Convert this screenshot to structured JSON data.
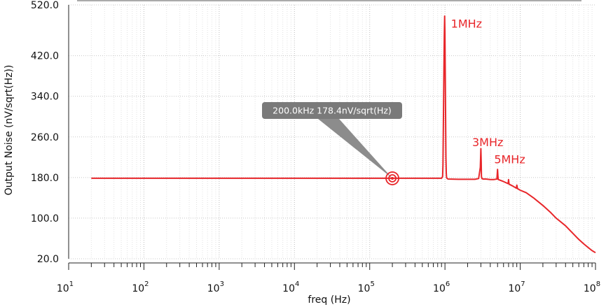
{
  "chart_data": {
    "type": "line",
    "x_scale": "log",
    "xlabel": "freq (Hz)",
    "ylabel": "Output Noise (nV/sqrt(Hz))",
    "xlim": [
      10,
      100000000
    ],
    "ylim": [
      20,
      520
    ],
    "x_ticks": [
      10,
      100,
      1000,
      10000,
      100000,
      1000000,
      10000000,
      100000000
    ],
    "x_tick_labels": [
      {
        "base": "10",
        "exp": "1"
      },
      {
        "base": "10",
        "exp": "2"
      },
      {
        "base": "10",
        "exp": "3"
      },
      {
        "base": "10",
        "exp": "4"
      },
      {
        "base": "10",
        "exp": "5"
      },
      {
        "base": "10",
        "exp": "6"
      },
      {
        "base": "10",
        "exp": "7"
      },
      {
        "base": "10",
        "exp": "8"
      }
    ],
    "y_ticks": [
      20,
      100,
      180,
      260,
      340,
      420,
      520
    ],
    "y_tick_labels": [
      "20.0",
      "100.0",
      "180.0",
      "260.0",
      "340.0",
      "420.0",
      "520.0"
    ],
    "grid": true,
    "line_color": "#e8262a",
    "series": [
      {
        "x": [
          20,
          900000,
          930000,
          940000,
          950000,
          960000,
          970000,
          980000,
          990000,
          1000000,
          1010000,
          1020000,
          1030000,
          1040000,
          1050000,
          1070000,
          1100000,
          1500000,
          2000000,
          2500000,
          2800000,
          2950000,
          3000000,
          3030000,
          3050000,
          3100000,
          3200000,
          3500000,
          4000000,
          4500000,
          4900000,
          5000000,
          5050000,
          5100000,
          6000000,
          6900000,
          7000000,
          7100000,
          8000000,
          8900000,
          9000000,
          9200000,
          10000000,
          12000000,
          15000000,
          20000000,
          25000000,
          30000000,
          40000000,
          50000000,
          60000000,
          70000000,
          80000000,
          90000000,
          100000000
        ],
        "y": [
          178.5,
          178.5,
          182,
          205,
          260,
          330,
          400,
          460,
          498,
          465,
          380,
          290,
          220,
          190,
          180,
          178,
          177,
          176.5,
          176.5,
          176.5,
          178,
          200,
          237,
          210,
          182,
          178,
          177,
          177,
          176,
          176,
          177,
          196,
          184,
          176,
          172,
          168,
          176,
          167,
          163,
          159,
          165,
          158,
          155,
          150,
          140,
          125,
          112,
          100,
          85,
          70,
          58,
          49,
          42,
          36,
          32
        ]
      }
    ],
    "annotations": [
      {
        "text": "1MHz",
        "x": 1200000,
        "y": 475
      },
      {
        "text": "3MHz",
        "x": 2300000,
        "y": 242
      },
      {
        "text": "5MHz",
        "x": 4500000,
        "y": 208
      }
    ],
    "marker": {
      "x": 200000,
      "y": 178.4
    },
    "callout_label": "200.0kHz 178.4nV/sqrt(Hz)"
  }
}
